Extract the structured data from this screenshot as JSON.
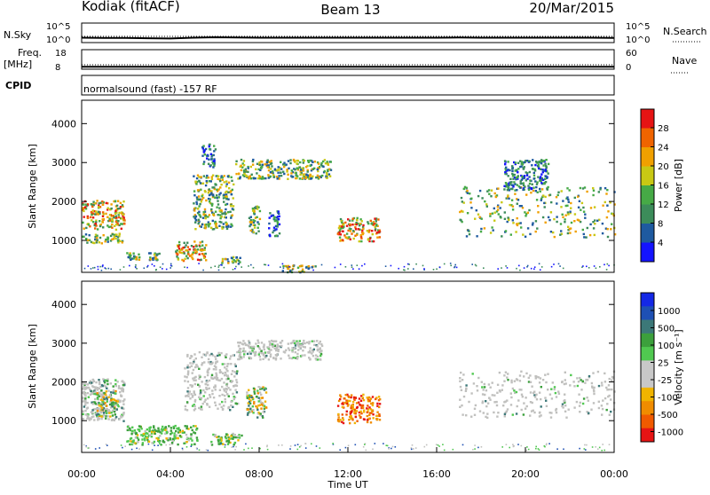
{
  "header": {
    "station": "Kodiak (fitACF)",
    "beam": "Beam 13",
    "date": "20/Mar/2015"
  },
  "strips": {
    "nsky_label": "N.Sky",
    "nsky_ticks": [
      "10^5",
      "10^0"
    ],
    "nsearch_label": "N.Search",
    "nsearch_ticks": [
      "10^5",
      "10^0"
    ],
    "freq_label_1": "Freq.",
    "freq_label_2": "[MHz]",
    "freq_ticks": [
      "18",
      "8"
    ],
    "nave_label": "Nave",
    "nave_ticks": [
      "60",
      "0"
    ],
    "cpid_label": "CPID",
    "cpid_text": "normalsound (fast) -157 RF"
  },
  "colors": {
    "power": [
      "#1414ff",
      "#1e5aa0",
      "#3c8c5a",
      "#46aa46",
      "#c8c814",
      "#f0a000",
      "#f06400",
      "#e61414"
    ],
    "velocity": [
      "#e61414",
      "#f05a00",
      "#f08c00",
      "#f0b400",
      "#c8c8c8",
      "#c8c8c8",
      "#50c850",
      "#3ca03c",
      "#3c7878",
      "#1e50b4",
      "#1428e6"
    ],
    "scatter_gray": "#c0c0be"
  },
  "power_colorbar": {
    "label": "Power [dB]",
    "ticks": [
      "28",
      "24",
      "20",
      "16",
      "12",
      "8",
      "4"
    ]
  },
  "velocity_colorbar": {
    "label": "Velocity [m s⁻¹]",
    "ticks": [
      "1000",
      "500",
      "100",
      "25",
      "-25",
      "-100",
      "-500",
      "-1000"
    ]
  },
  "chart_data": [
    {
      "type": "heatmap",
      "name": "power-panel",
      "title": "",
      "xlabel": "Time UT",
      "ylabel": "Slant Range [km]",
      "x_ticks": [
        "00:00",
        "04:00",
        "08:00",
        "12:00",
        "16:00",
        "20:00",
        "00:00"
      ],
      "y_ticks": [
        "4000",
        "3000",
        "2000",
        "1000"
      ],
      "xlim_hours": [
        0,
        24
      ],
      "ylim_km": [
        180,
        4600
      ],
      "color_scale": "Power [dB]",
      "regions": [
        {
          "t0": 0.0,
          "t1": 1.9,
          "r0": 1300,
          "r1": 2050,
          "level": "high"
        },
        {
          "t0": 0.0,
          "t1": 1.8,
          "r0": 950,
          "r1": 1200,
          "level": "mid"
        },
        {
          "t0": 2.0,
          "t1": 2.6,
          "r0": 500,
          "r1": 700,
          "level": "mid"
        },
        {
          "t0": 3.0,
          "t1": 3.5,
          "r0": 500,
          "r1": 700,
          "level": "mid"
        },
        {
          "t0": 4.2,
          "t1": 5.6,
          "r0": 500,
          "r1": 1000,
          "level": "high"
        },
        {
          "t0": 5.0,
          "t1": 6.8,
          "r0": 1300,
          "r1": 2700,
          "level": "mid"
        },
        {
          "t0": 5.4,
          "t1": 6.0,
          "r0": 2900,
          "r1": 3500,
          "level": "low"
        },
        {
          "t0": 6.2,
          "t1": 7.2,
          "r0": 400,
          "r1": 600,
          "level": "mid"
        },
        {
          "t0": 6.9,
          "t1": 11.2,
          "r0": 2600,
          "r1": 3100,
          "level": "mid"
        },
        {
          "t0": 7.5,
          "t1": 8.0,
          "r0": 1200,
          "r1": 1900,
          "level": "mid"
        },
        {
          "t0": 8.4,
          "t1": 8.9,
          "r0": 1100,
          "r1": 1800,
          "level": "low"
        },
        {
          "t0": 9.0,
          "t1": 10.5,
          "r0": 200,
          "r1": 400,
          "level": "mid"
        },
        {
          "t0": 11.5,
          "t1": 12.7,
          "r0": 1000,
          "r1": 1600,
          "level": "high"
        },
        {
          "t0": 12.8,
          "t1": 13.4,
          "r0": 1000,
          "r1": 1600,
          "level": "high"
        },
        {
          "t0": 17.0,
          "t1": 24.0,
          "r0": 1100,
          "r1": 2400,
          "level": "mid"
        },
        {
          "t0": 19.0,
          "t1": 21.0,
          "r0": 2300,
          "r1": 3100,
          "level": "low"
        }
      ]
    },
    {
      "type": "heatmap",
      "name": "velocity-panel",
      "title": "",
      "xlabel": "Time UT",
      "ylabel": "Slant Range [km]",
      "x_ticks": [
        "00:00",
        "04:00",
        "08:00",
        "12:00",
        "16:00",
        "20:00",
        "00:00"
      ],
      "y_ticks": [
        "4000",
        "3000",
        "2000",
        "1000"
      ],
      "xlim_hours": [
        0,
        24
      ],
      "ylim_km": [
        180,
        4600
      ],
      "color_scale": "Velocity [m s-1]",
      "regions": [
        {
          "t0": 0.0,
          "t1": 1.9,
          "r0": 1000,
          "r1": 2100,
          "level": "gray"
        },
        {
          "t0": 0.6,
          "t1": 1.6,
          "r0": 1100,
          "r1": 1800,
          "level": "mixed"
        },
        {
          "t0": 2.0,
          "t1": 5.2,
          "r0": 400,
          "r1": 900,
          "level": "green"
        },
        {
          "t0": 4.6,
          "t1": 7.0,
          "r0": 1300,
          "r1": 2800,
          "level": "gray"
        },
        {
          "t0": 5.8,
          "t1": 7.2,
          "r0": 400,
          "r1": 700,
          "level": "green"
        },
        {
          "t0": 7.0,
          "t1": 10.8,
          "r0": 2600,
          "r1": 3100,
          "level": "gray"
        },
        {
          "t0": 7.4,
          "t1": 8.3,
          "r0": 1100,
          "r1": 1900,
          "level": "mixed"
        },
        {
          "t0": 11.5,
          "t1": 12.7,
          "r0": 950,
          "r1": 1700,
          "level": "orange"
        },
        {
          "t0": 12.8,
          "t1": 13.4,
          "r0": 950,
          "r1": 1700,
          "level": "orange"
        },
        {
          "t0": 17.0,
          "t1": 24.0,
          "r0": 1100,
          "r1": 2300,
          "level": "gray"
        }
      ]
    }
  ],
  "noise_series": {
    "x_hours": [
      0,
      1,
      2,
      3,
      4,
      5,
      6,
      7,
      8,
      9,
      10,
      11,
      12,
      13,
      14,
      15,
      16,
      17,
      18,
      19,
      20,
      21,
      22,
      23,
      24
    ],
    "nsky_log": [
      1.6,
      1.5,
      1.5,
      1.3,
      1.2,
      1.6,
      1.8,
      1.7,
      1.6,
      1.6,
      1.6,
      1.6,
      1.6,
      1.6,
      1.6,
      1.6,
      1.6,
      1.7,
      1.6,
      1.6,
      1.6,
      1.6,
      1.6,
      1.6,
      1.5
    ],
    "freq_mhz": [
      10.6,
      10.6,
      10.6,
      10.6,
      10.6,
      10.6,
      10.6,
      10.6,
      10.6,
      10.6,
      10.6,
      10.6,
      10.6,
      10.6,
      10.6,
      10.6,
      10.6,
      10.6,
      10.6,
      10.6,
      10.6,
      10.6,
      10.6,
      10.6,
      10.6
    ],
    "nave": [
      14,
      14,
      14,
      14,
      14,
      14,
      14,
      14,
      14,
      14,
      14,
      14,
      14,
      14,
      14,
      14,
      14,
      14,
      14,
      14,
      14,
      14,
      14,
      14,
      14
    ]
  }
}
